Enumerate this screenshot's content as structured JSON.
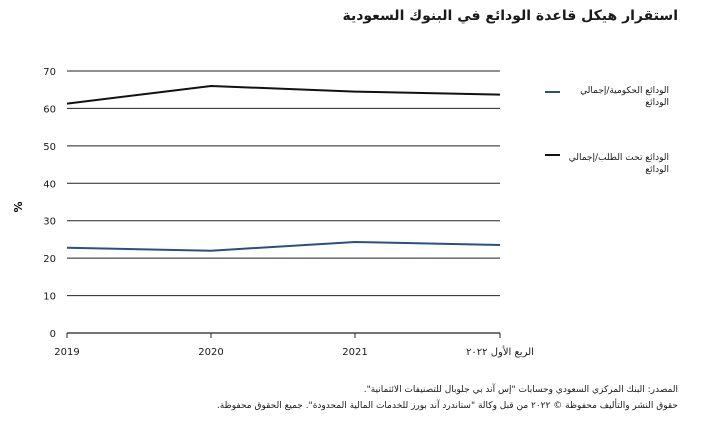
{
  "title": "استقرار هيكل قاعدة الودائع في البنوك السعودية",
  "footer": {
    "source": "المصدر: البنك المركزي السعودي وحسابات \"إس آند بي جلوبال للتصنيفات الائتمانية\".",
    "copyright": "حقوق النشر والتأليف محفوظة © ٢٠٢٢ من قبل وكالة \"ستاندرد آند بورز للخدمات المالية المحدودة\". جميع الحقوق محفوظة."
  },
  "colors": {
    "government": "#2b4f82",
    "demand": "#111111",
    "grid": "#222222",
    "text": "#1a1a1a"
  },
  "chart_data": {
    "type": "line",
    "title": "استقرار هيكل قاعدة الودائع في البنوك السعودية",
    "xlabel": "",
    "ylabel": "%",
    "categories": [
      "2019",
      "2020",
      "2021",
      "الربع الأول ٢٠٢٢"
    ],
    "ylim": [
      0,
      70
    ],
    "yticks": [
      0,
      10,
      20,
      30,
      40,
      50,
      60,
      70
    ],
    "grid": true,
    "legend_position": "right",
    "series": [
      {
        "name": "الودائع الحكومية/إجمالي الودائع",
        "color": "#2b4f82",
        "values": [
          22.8,
          22.0,
          24.3,
          23.5
        ]
      },
      {
        "name": "الودائع تحت الطلب/إجمالي الودائع",
        "color": "#111111",
        "values": [
          61.3,
          66.0,
          64.5,
          63.7
        ]
      }
    ]
  }
}
